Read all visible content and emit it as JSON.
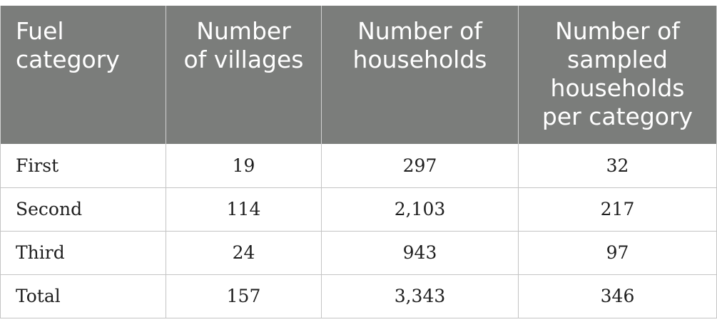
{
  "table": {
    "headers": [
      "Fuel\ncategory",
      "Number\nof villages",
      "Number of\nhouseholds",
      "Number of\nsampled\nhouseholds\nper category"
    ],
    "rows": [
      {
        "category": "First",
        "villages": "19",
        "households": "297",
        "sampled": "32"
      },
      {
        "category": "Second",
        "villages": "114",
        "households": "2,103",
        "sampled": "217"
      },
      {
        "category": "Third",
        "villages": "24",
        "households": "943",
        "sampled": "97"
      },
      {
        "category": "Total",
        "villages": "157",
        "households": "3,343",
        "sampled": "346"
      }
    ]
  }
}
